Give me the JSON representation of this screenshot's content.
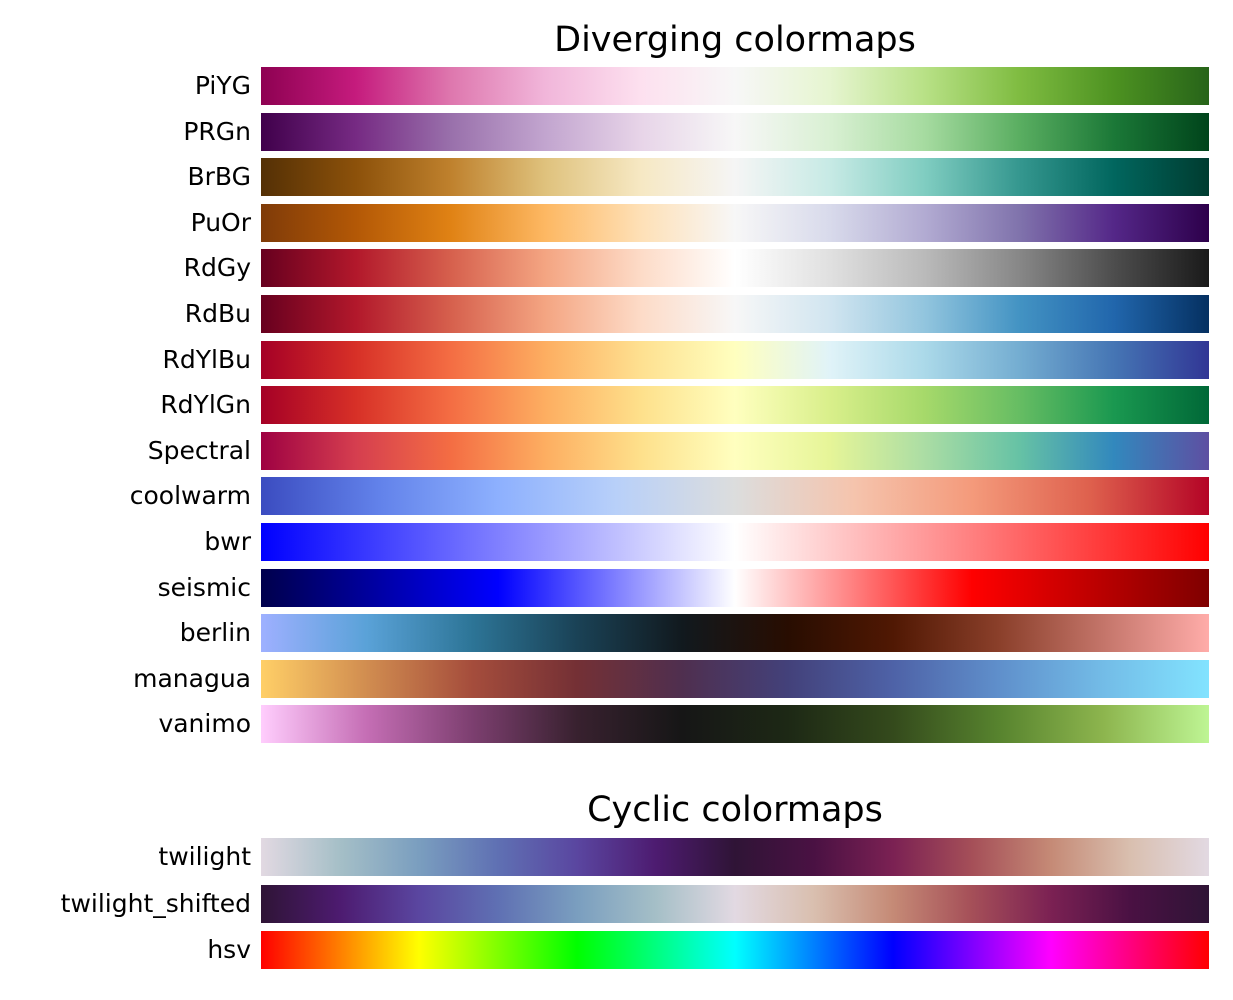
{
  "chart_data": [
    {
      "type": "colormap",
      "title": "Diverging colormaps",
      "colormaps": [
        {
          "name": "PiYG",
          "colors": [
            "#8e0152",
            "#c51b7d",
            "#de77ae",
            "#f1b6da",
            "#fde0ef",
            "#f7f7f7",
            "#e6f5d0",
            "#b8e186",
            "#7fbc41",
            "#4d9221",
            "#276419"
          ]
        },
        {
          "name": "PRGn",
          "colors": [
            "#40004b",
            "#762a83",
            "#9970ab",
            "#c2a5cf",
            "#e7d4e8",
            "#f7f7f7",
            "#d9f0d3",
            "#a6dba0",
            "#5aae61",
            "#1b7837",
            "#00441b"
          ]
        },
        {
          "name": "BrBG",
          "colors": [
            "#543005",
            "#8c510a",
            "#bf812d",
            "#dfc27d",
            "#f6e8c3",
            "#f5f5f5",
            "#c7eae5",
            "#80cdc1",
            "#35978f",
            "#01665e",
            "#003c30"
          ]
        },
        {
          "name": "PuOr",
          "colors": [
            "#7f3b08",
            "#b35806",
            "#e08214",
            "#fdb863",
            "#fee0b6",
            "#f7f7f7",
            "#d8daeb",
            "#b2abd2",
            "#8073ac",
            "#542788",
            "#2d004b"
          ]
        },
        {
          "name": "RdGy",
          "colors": [
            "#67001f",
            "#b2182b",
            "#d6604d",
            "#f4a582",
            "#fddbc7",
            "#ffffff",
            "#e0e0e0",
            "#bababa",
            "#878787",
            "#4d4d4d",
            "#1a1a1a"
          ]
        },
        {
          "name": "RdBu",
          "colors": [
            "#67001f",
            "#b2182b",
            "#d6604d",
            "#f4a582",
            "#fddbc7",
            "#f7f7f7",
            "#d1e5f0",
            "#92c5de",
            "#4393c3",
            "#2166ac",
            "#053061"
          ]
        },
        {
          "name": "RdYlBu",
          "colors": [
            "#a50026",
            "#d73027",
            "#f46d43",
            "#fdae61",
            "#fee090",
            "#ffffbf",
            "#e0f3f8",
            "#abd9e9",
            "#74add1",
            "#4575b4",
            "#313695"
          ]
        },
        {
          "name": "RdYlGn",
          "colors": [
            "#a50026",
            "#d73027",
            "#f46d43",
            "#fdae61",
            "#fee08b",
            "#ffffbf",
            "#d9ef8b",
            "#a6d96a",
            "#66bd63",
            "#1a9850",
            "#006837"
          ]
        },
        {
          "name": "Spectral",
          "colors": [
            "#9e0142",
            "#d53e4f",
            "#f46d43",
            "#fdae61",
            "#fee08b",
            "#ffffbf",
            "#e6f598",
            "#abdda4",
            "#66c2a5",
            "#3288bd",
            "#5e4fa2"
          ]
        },
        {
          "name": "coolwarm",
          "colors": [
            "#3b4cc0",
            "#6282ea",
            "#8db0fe",
            "#b8d0f9",
            "#dcdddd",
            "#f5c4ad",
            "#f49a7b",
            "#de604d",
            "#b40426"
          ]
        },
        {
          "name": "bwr",
          "colors": [
            "#0000ff",
            "#ffffff",
            "#ff0000"
          ]
        },
        {
          "name": "seismic",
          "colors": [
            "#00004c",
            "#0000ff",
            "#ffffff",
            "#ff0000",
            "#7f0000"
          ]
        },
        {
          "name": "berlin",
          "colors": [
            "#9eb0ff",
            "#5aa2d8",
            "#2d7597",
            "#1a4256",
            "#11191e",
            "#280d01",
            "#501803",
            "#8a3f2a",
            "#c4756a",
            "#ffaca9"
          ]
        },
        {
          "name": "managua",
          "colors": [
            "#ffcf67",
            "#d18d50",
            "#a54d3c",
            "#743035",
            "#4f2f4f",
            "#43417a",
            "#4e62a7",
            "#5f8fcb",
            "#73bce7",
            "#82e3ff"
          ]
        },
        {
          "name": "vanimo",
          "colors": [
            "#ffcdfd",
            "#c56eb5",
            "#7d3f70",
            "#38212f",
            "#161616",
            "#1d2815",
            "#344a1c",
            "#57832e",
            "#8db54e",
            "#bef594"
          ]
        }
      ]
    },
    {
      "type": "colormap",
      "title": "Cyclic colormaps",
      "colormaps": [
        {
          "name": "twilight",
          "colors": [
            "#e2d9e2",
            "#a5bfc7",
            "#7a9ebf",
            "#5f70b3",
            "#5a46a0",
            "#4d1b70",
            "#2f1436",
            "#4a1143",
            "#7b2153",
            "#a54f58",
            "#c58a76",
            "#d9bfaf",
            "#e2d9e2"
          ]
        },
        {
          "name": "twilight_shifted",
          "colors": [
            "#2f1436",
            "#4d1b70",
            "#5a46a0",
            "#5f70b3",
            "#7a9ebf",
            "#a5bfc7",
            "#e2d9e2",
            "#d9bfaf",
            "#c58a76",
            "#a54f58",
            "#7b2153",
            "#4a1143",
            "#2f1436"
          ]
        },
        {
          "name": "hsv",
          "colors": [
            "#ff0000",
            "#ffff00",
            "#00ff00",
            "#00ffff",
            "#0000ff",
            "#ff00ff",
            "#ff0000"
          ]
        }
      ]
    }
  ]
}
